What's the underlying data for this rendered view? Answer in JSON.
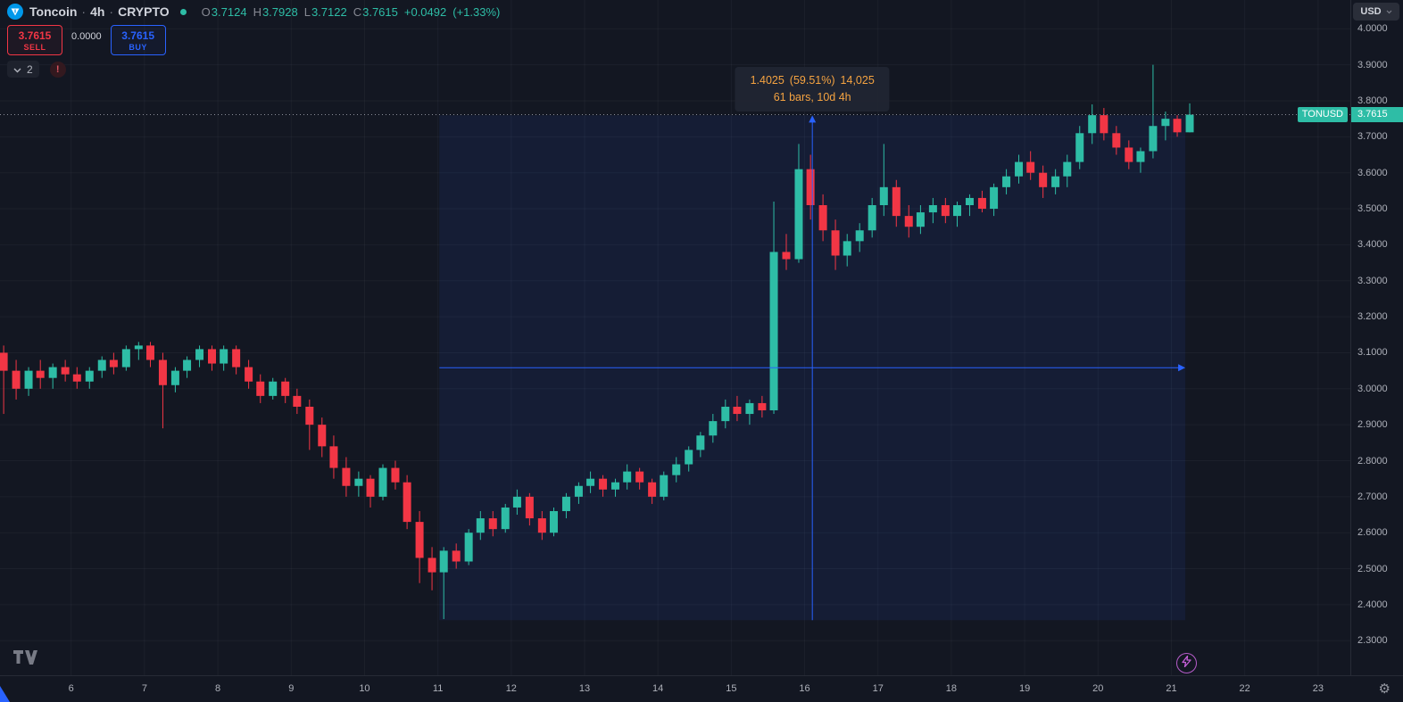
{
  "colors": {
    "background": "#131722",
    "up": "#2ebda6",
    "down": "#f23645",
    "accent_blue": "#2962ff",
    "measure_text": "#f5a341",
    "logo_blue": "#0098ea"
  },
  "icons": {
    "gear": "⚙",
    "warning": "!"
  },
  "header": {
    "symbol": "Toncoin",
    "separator": "·",
    "interval": "4h",
    "exchange": "CRYPTO",
    "ohlc": {
      "o_label": "O",
      "o": "3.7124",
      "h_label": "H",
      "h": "3.7928",
      "l_label": "L",
      "l": "3.7122",
      "c_label": "C",
      "c": "3.7615",
      "change": "+0.0492",
      "change_pct": "(+1.33%)"
    }
  },
  "trade_panel": {
    "sell_price": "3.7615",
    "sell_label": "SELL",
    "spread": "0.0000",
    "buy_price": "3.7615",
    "buy_label": "BUY"
  },
  "toolbar": {
    "collapse_count": "2"
  },
  "price_scale": {
    "currency": "USD",
    "symbol_label": "TONUSD",
    "last_price_label": "3.7615"
  },
  "measurement": {
    "change": "1.4025",
    "percent": "(59.51%)",
    "volume": "14,025",
    "duration": "61 bars, 10d 4h"
  },
  "chart_data": {
    "type": "candlestick",
    "symbol": "TONUSD",
    "interval": "4h",
    "up_color": "#2ebda6",
    "down_color": "#f23645",
    "xlim": [
      5.03,
      23.44
    ],
    "ylim": [
      2.204,
      4.08
    ],
    "last_price": 3.7615,
    "x_axis": {
      "labels": [
        "6",
        "7",
        "8",
        "9",
        "10",
        "11",
        "12",
        "13",
        "14",
        "15",
        "16",
        "17",
        "18",
        "19",
        "20",
        "21",
        "22",
        "23"
      ]
    },
    "y_axis": {
      "labels": [
        "4.0000",
        "3.9000",
        "3.8000",
        "3.7000",
        "3.6000",
        "3.5000",
        "3.4000",
        "3.3000",
        "3.2000",
        "3.1000",
        "3.0000",
        "2.9000",
        "2.8000",
        "2.7000",
        "2.6000",
        "2.5000",
        "2.4000",
        "2.3000"
      ]
    },
    "measure": {
      "x1": 11.02,
      "x2": 21.19,
      "price1": 2.357,
      "price2": 3.7595
    },
    "candles": [
      [
        5.08,
        3.1,
        3.12,
        2.93,
        3.05
      ],
      [
        5.25,
        3.05,
        3.08,
        2.97,
        3.0
      ],
      [
        5.42,
        3.0,
        3.06,
        2.98,
        3.05
      ],
      [
        5.58,
        3.05,
        3.08,
        3.0,
        3.03
      ],
      [
        5.75,
        3.03,
        3.07,
        3.0,
        3.06
      ],
      [
        5.92,
        3.06,
        3.08,
        3.02,
        3.04
      ],
      [
        6.08,
        3.04,
        3.06,
        3.0,
        3.02
      ],
      [
        6.25,
        3.02,
        3.06,
        3.0,
        3.05
      ],
      [
        6.42,
        3.05,
        3.09,
        3.03,
        3.08
      ],
      [
        6.58,
        3.08,
        3.1,
        3.04,
        3.06
      ],
      [
        6.75,
        3.06,
        3.12,
        3.05,
        3.11
      ],
      [
        6.92,
        3.11,
        3.13,
        3.08,
        3.12
      ],
      [
        7.08,
        3.12,
        3.13,
        3.06,
        3.08
      ],
      [
        7.25,
        3.08,
        3.1,
        2.89,
        3.01
      ],
      [
        7.42,
        3.01,
        3.06,
        2.99,
        3.05
      ],
      [
        7.58,
        3.05,
        3.09,
        3.03,
        3.08
      ],
      [
        7.75,
        3.08,
        3.12,
        3.06,
        3.11
      ],
      [
        7.92,
        3.11,
        3.12,
        3.05,
        3.07
      ],
      [
        8.08,
        3.07,
        3.12,
        3.05,
        3.11
      ],
      [
        8.25,
        3.11,
        3.12,
        3.04,
        3.06
      ],
      [
        8.42,
        3.06,
        3.08,
        3.0,
        3.02
      ],
      [
        8.58,
        3.02,
        3.04,
        2.96,
        2.98
      ],
      [
        8.75,
        2.98,
        3.03,
        2.97,
        3.02
      ],
      [
        8.92,
        3.02,
        3.03,
        2.96,
        2.98
      ],
      [
        9.08,
        2.98,
        3.0,
        2.93,
        2.95
      ],
      [
        9.25,
        2.95,
        2.97,
        2.83,
        2.9
      ],
      [
        9.42,
        2.9,
        2.92,
        2.81,
        2.84
      ],
      [
        9.58,
        2.84,
        2.87,
        2.75,
        2.78
      ],
      [
        9.75,
        2.78,
        2.81,
        2.7,
        2.73
      ],
      [
        9.92,
        2.73,
        2.77,
        2.7,
        2.75
      ],
      [
        10.08,
        2.75,
        2.76,
        2.67,
        2.7
      ],
      [
        10.25,
        2.7,
        2.79,
        2.69,
        2.78
      ],
      [
        10.42,
        2.78,
        2.8,
        2.72,
        2.74
      ],
      [
        10.58,
        2.74,
        2.76,
        2.61,
        2.63
      ],
      [
        10.75,
        2.63,
        2.66,
        2.46,
        2.53
      ],
      [
        10.92,
        2.53,
        2.56,
        2.44,
        2.49
      ],
      [
        11.08,
        2.49,
        2.56,
        2.36,
        2.55
      ],
      [
        11.25,
        2.55,
        2.57,
        2.5,
        2.52
      ],
      [
        11.42,
        2.52,
        2.61,
        2.51,
        2.6
      ],
      [
        11.58,
        2.6,
        2.66,
        2.58,
        2.64
      ],
      [
        11.75,
        2.64,
        2.66,
        2.59,
        2.61
      ],
      [
        11.92,
        2.61,
        2.68,
        2.6,
        2.67
      ],
      [
        12.08,
        2.67,
        2.72,
        2.65,
        2.7
      ],
      [
        12.25,
        2.7,
        2.71,
        2.62,
        2.64
      ],
      [
        12.42,
        2.64,
        2.66,
        2.58,
        2.6
      ],
      [
        12.58,
        2.6,
        2.67,
        2.59,
        2.66
      ],
      [
        12.75,
        2.66,
        2.71,
        2.64,
        2.7
      ],
      [
        12.92,
        2.7,
        2.74,
        2.68,
        2.73
      ],
      [
        13.08,
        2.73,
        2.77,
        2.71,
        2.75
      ],
      [
        13.25,
        2.75,
        2.76,
        2.7,
        2.72
      ],
      [
        13.42,
        2.72,
        2.75,
        2.7,
        2.74
      ],
      [
        13.58,
        2.74,
        2.79,
        2.72,
        2.77
      ],
      [
        13.75,
        2.77,
        2.78,
        2.72,
        2.74
      ],
      [
        13.92,
        2.74,
        2.75,
        2.68,
        2.7
      ],
      [
        14.08,
        2.7,
        2.77,
        2.69,
        2.76
      ],
      [
        14.25,
        2.76,
        2.81,
        2.74,
        2.79
      ],
      [
        14.42,
        2.79,
        2.84,
        2.77,
        2.83
      ],
      [
        14.58,
        2.83,
        2.88,
        2.81,
        2.87
      ],
      [
        14.75,
        2.87,
        2.93,
        2.85,
        2.91
      ],
      [
        14.92,
        2.91,
        2.97,
        2.89,
        2.95
      ],
      [
        15.08,
        2.95,
        2.98,
        2.91,
        2.93
      ],
      [
        15.25,
        2.93,
        2.97,
        2.9,
        2.96
      ],
      [
        15.42,
        2.96,
        2.98,
        2.92,
        2.94
      ],
      [
        15.58,
        2.94,
        3.52,
        2.93,
        3.38
      ],
      [
        15.75,
        3.38,
        3.43,
        3.33,
        3.36
      ],
      [
        15.92,
        3.36,
        3.68,
        3.35,
        3.61
      ],
      [
        16.08,
        3.61,
        3.65,
        3.47,
        3.51
      ],
      [
        16.25,
        3.51,
        3.54,
        3.41,
        3.44
      ],
      [
        16.42,
        3.44,
        3.47,
        3.33,
        3.37
      ],
      [
        16.58,
        3.37,
        3.43,
        3.34,
        3.41
      ],
      [
        16.75,
        3.41,
        3.46,
        3.38,
        3.44
      ],
      [
        16.92,
        3.44,
        3.53,
        3.42,
        3.51
      ],
      [
        17.08,
        3.51,
        3.68,
        3.48,
        3.56
      ],
      [
        17.25,
        3.56,
        3.58,
        3.45,
        3.48
      ],
      [
        17.42,
        3.48,
        3.51,
        3.42,
        3.45
      ],
      [
        17.58,
        3.45,
        3.51,
        3.43,
        3.49
      ],
      [
        17.75,
        3.49,
        3.53,
        3.46,
        3.51
      ],
      [
        17.92,
        3.51,
        3.53,
        3.46,
        3.48
      ],
      [
        18.08,
        3.48,
        3.52,
        3.45,
        3.51
      ],
      [
        18.25,
        3.51,
        3.54,
        3.48,
        3.53
      ],
      [
        18.42,
        3.53,
        3.55,
        3.49,
        3.5
      ],
      [
        18.58,
        3.5,
        3.57,
        3.48,
        3.56
      ],
      [
        18.75,
        3.56,
        3.61,
        3.54,
        3.59
      ],
      [
        18.92,
        3.59,
        3.65,
        3.57,
        3.63
      ],
      [
        19.08,
        3.63,
        3.66,
        3.58,
        3.6
      ],
      [
        19.25,
        3.6,
        3.62,
        3.53,
        3.56
      ],
      [
        19.42,
        3.56,
        3.61,
        3.54,
        3.59
      ],
      [
        19.58,
        3.59,
        3.65,
        3.56,
        3.63
      ],
      [
        19.75,
        3.63,
        3.73,
        3.61,
        3.71
      ],
      [
        19.92,
        3.71,
        3.79,
        3.68,
        3.76
      ],
      [
        20.08,
        3.76,
        3.78,
        3.69,
        3.71
      ],
      [
        20.25,
        3.71,
        3.73,
        3.65,
        3.67
      ],
      [
        20.42,
        3.67,
        3.69,
        3.61,
        3.63
      ],
      [
        20.58,
        3.63,
        3.67,
        3.6,
        3.66
      ],
      [
        20.75,
        3.66,
        3.9,
        3.64,
        3.73
      ],
      [
        20.92,
        3.73,
        3.77,
        3.69,
        3.75
      ],
      [
        21.08,
        3.75,
        3.76,
        3.7,
        3.7124
      ],
      [
        21.25,
        3.7124,
        3.7928,
        3.7122,
        3.7615
      ]
    ]
  }
}
